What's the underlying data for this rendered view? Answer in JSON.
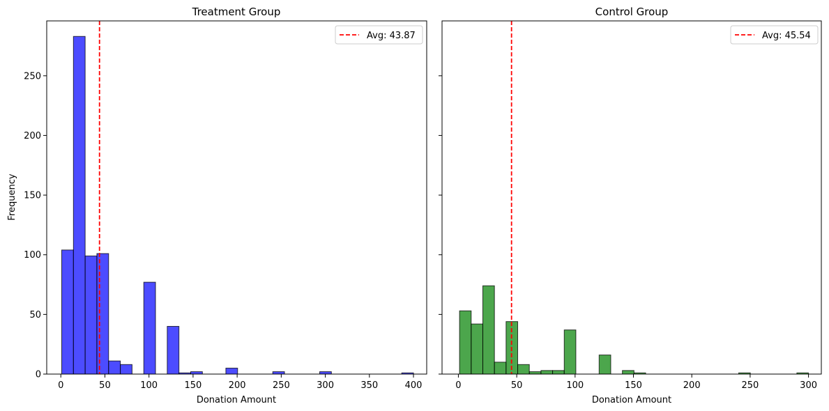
{
  "chart_data": [
    {
      "type": "bar",
      "title": "Treatment Group",
      "xlabel": "Donation Amount",
      "ylabel": "Frequency",
      "xlim": [
        -16,
        415
      ],
      "ylim": [
        0,
        296
      ],
      "xticks": [
        0,
        50,
        100,
        150,
        200,
        250,
        300,
        350,
        400
      ],
      "yticks": [
        0,
        50,
        100,
        150,
        200,
        250
      ],
      "ytick_labels_visible": true,
      "bar_color": "#0000ff",
      "bin_edges": [
        1,
        14.3,
        27.6,
        40.9,
        54.2,
        67.5,
        80.8,
        94.1,
        107.4,
        120.7,
        134,
        147.3,
        160.6,
        173.9,
        187.2,
        200.5,
        213.8,
        227.1,
        240.4,
        253.7,
        267,
        280.3,
        293.6,
        306.9,
        320.2,
        333.5,
        346.8,
        360.1,
        373.4,
        386.7,
        400
      ],
      "values": [
        104,
        283,
        99,
        101,
        11,
        8,
        0,
        77,
        0,
        40,
        1,
        2,
        0,
        0,
        5,
        0,
        0,
        0,
        2,
        0,
        0,
        0,
        2,
        0,
        0,
        0,
        0,
        0,
        0,
        1
      ],
      "mean_line": {
        "value": 43.87,
        "color": "#ff0000",
        "legend_label": "Avg: 43.87"
      },
      "legend_position": "upper right"
    },
    {
      "type": "bar",
      "title": "Control Group",
      "xlabel": "Donation Amount",
      "ylabel": "",
      "xlim": [
        -14,
        311
      ],
      "ylim": [
        0,
        296
      ],
      "xticks": [
        0,
        50,
        100,
        150,
        200,
        250,
        300
      ],
      "yticks": [
        0,
        50,
        100,
        150,
        200,
        250
      ],
      "ytick_labels_visible": false,
      "bar_color": "#008000",
      "bin_edges": [
        1,
        10.97,
        20.93,
        30.9,
        40.87,
        50.83,
        60.8,
        70.77,
        80.73,
        90.7,
        100.67,
        110.63,
        120.6,
        130.57,
        140.53,
        150.5,
        160.47,
        170.43,
        180.4,
        190.37,
        200.33,
        210.3,
        220.27,
        230.23,
        240.2,
        250.17,
        260.13,
        270.1,
        280.07,
        290.03,
        300
      ],
      "values": [
        53,
        42,
        74,
        10,
        44,
        8,
        2,
        3,
        3,
        37,
        0,
        0,
        16,
        0,
        3,
        1,
        0,
        0,
        0,
        0,
        0,
        0,
        0,
        0,
        1,
        0,
        0,
        0,
        0,
        1
      ],
      "mean_line": {
        "value": 45.54,
        "color": "#ff0000",
        "legend_label": "Avg: 45.54"
      },
      "legend_position": "upper right"
    }
  ]
}
